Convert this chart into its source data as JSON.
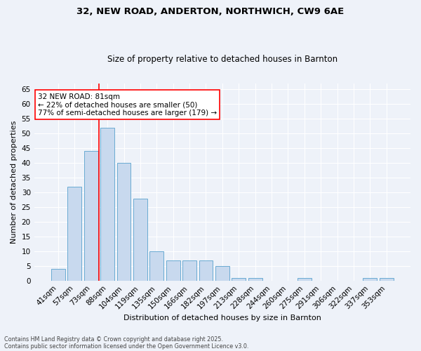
{
  "title1": "32, NEW ROAD, ANDERTON, NORTHWICH, CW9 6AE",
  "title2": "Size of property relative to detached houses in Barnton",
  "xlabel": "Distribution of detached houses by size in Barnton",
  "ylabel": "Number of detached properties",
  "bar_color": "#c8d9ee",
  "bar_edge_color": "#6aabd2",
  "categories": [
    "41sqm",
    "57sqm",
    "73sqm",
    "88sqm",
    "104sqm",
    "119sqm",
    "135sqm",
    "150sqm",
    "166sqm",
    "182sqm",
    "197sqm",
    "213sqm",
    "228sqm",
    "244sqm",
    "260sqm",
    "275sqm",
    "291sqm",
    "306sqm",
    "322sqm",
    "337sqm",
    "353sqm"
  ],
  "values": [
    4,
    32,
    44,
    52,
    40,
    28,
    10,
    7,
    7,
    7,
    5,
    1,
    1,
    0,
    0,
    1,
    0,
    0,
    0,
    1,
    1
  ],
  "ylim": [
    0,
    67
  ],
  "yticks": [
    0,
    5,
    10,
    15,
    20,
    25,
    30,
    35,
    40,
    45,
    50,
    55,
    60,
    65
  ],
  "annotation_text": "32 NEW ROAD: 81sqm\n← 22% of detached houses are smaller (50)\n77% of semi-detached houses are larger (179) →",
  "footer1": "Contains HM Land Registry data © Crown copyright and database right 2025.",
  "footer2": "Contains public sector information licensed under the Open Government Licence v3.0.",
  "background_color": "#eef2f9",
  "grid_color": "#ffffff",
  "red_line_index": 2.5
}
